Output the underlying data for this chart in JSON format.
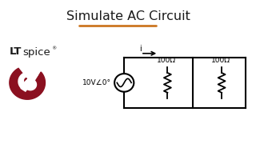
{
  "title": "Simulate AC Circuit",
  "title_color": "#1a1a1a",
  "title_fontsize": 11.5,
  "underline_color": "#CC7722",
  "bg_color": "#ffffff",
  "lt_text": "LT",
  "spice_text": "spice",
  "reg_text": "®",
  "logo_color_lt": "#1a1a1a",
  "logo_red": "#8B1020",
  "voltage_label": "10V∠0°",
  "current_label": "i",
  "r1_label": "100Ω",
  "r2_label": "100Ω"
}
